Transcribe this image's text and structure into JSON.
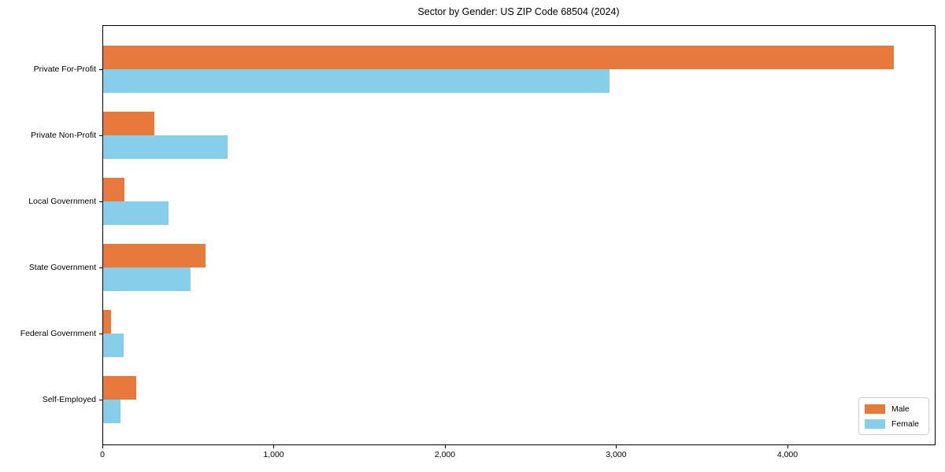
{
  "title": "Sector by Gender: US ZIP Code 68504 (2024)",
  "colors": {
    "male": "#e8793d",
    "female": "#87ceeb",
    "axis": "#000000",
    "legend_border": "#cccccc",
    "background": "#ffffff"
  },
  "chart_data": {
    "type": "bar",
    "orientation": "horizontal",
    "title": "Sector by Gender: US ZIP Code 68504 (2024)",
    "categories": [
      "Private For-Profit",
      "Private Non-Profit",
      "Local Government",
      "State Government",
      "Federal Government",
      "Self-Employed"
    ],
    "series": [
      {
        "name": "Male",
        "color": "#e8793d",
        "values": [
          4615,
          300,
          125,
          600,
          45,
          195
        ]
      },
      {
        "name": "Female",
        "color": "#87ceeb",
        "values": [
          2955,
          725,
          380,
          510,
          120,
          100
        ]
      }
    ],
    "xlabel": "",
    "ylabel": "",
    "xlim": [
      0,
      4860
    ],
    "xticks": [
      0,
      1000,
      2000,
      3000,
      4000
    ],
    "xtick_labels": [
      "0",
      "1,000",
      "2,000",
      "3,000",
      "4,000"
    ],
    "grid": false,
    "legend": {
      "position": "lower right",
      "entries": [
        {
          "label": "Male",
          "color": "#e8793d"
        },
        {
          "label": "Female",
          "color": "#87ceeb"
        }
      ]
    }
  }
}
